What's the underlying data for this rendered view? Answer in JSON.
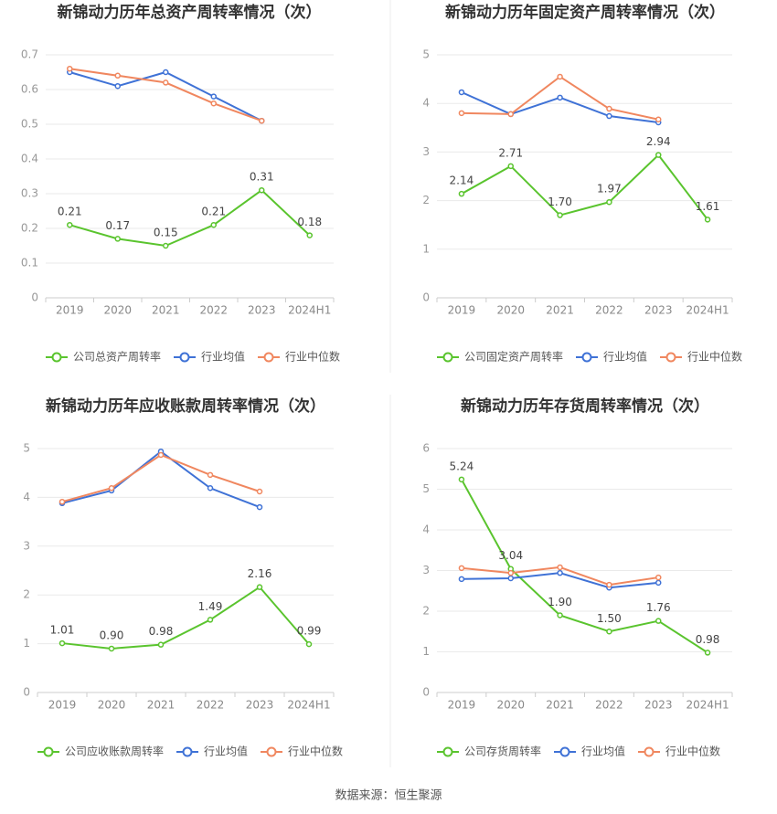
{
  "chart_data": [
    {
      "type": "line",
      "title": "新锦动力历年总资产周转率情况（次）",
      "categories": [
        "2019",
        "2020",
        "2021",
        "2022",
        "2023",
        "2024H1"
      ],
      "ylim": [
        0,
        0.7
      ],
      "yticks": [
        0,
        0.1,
        0.2,
        0.3,
        0.4,
        0.5,
        0.6,
        0.7
      ],
      "grid": true,
      "series": [
        {
          "name": "公司总资产周转率",
          "color": "#5ac42e",
          "data_labels": true,
          "values": [
            0.21,
            0.17,
            0.15,
            0.21,
            0.31,
            0.18
          ]
        },
        {
          "name": "行业均值",
          "color": "#3f72d6",
          "values": [
            0.65,
            0.61,
            0.65,
            0.58,
            0.51,
            null
          ]
        },
        {
          "name": "行业中位数",
          "color": "#f0875f",
          "values": [
            0.66,
            0.64,
            0.62,
            0.56,
            0.51,
            null
          ]
        }
      ]
    },
    {
      "type": "line",
      "title": "新锦动力历年固定资产周转率情况（次）",
      "categories": [
        "2019",
        "2020",
        "2021",
        "2022",
        "2023",
        "2024H1"
      ],
      "ylim": [
        0,
        5
      ],
      "yticks": [
        0,
        1,
        2,
        3,
        4,
        5
      ],
      "grid": true,
      "series": [
        {
          "name": "公司固定资产周转率",
          "color": "#5ac42e",
          "data_labels": true,
          "values": [
            2.14,
            2.71,
            1.7,
            1.97,
            2.94,
            1.61
          ],
          "value_labels": [
            "2.14",
            "2.71",
            "1.70",
            "1.97",
            "2.94",
            "1.61"
          ]
        },
        {
          "name": "行业均值",
          "color": "#3f72d6",
          "values": [
            4.23,
            3.78,
            4.12,
            3.74,
            3.61,
            null
          ]
        },
        {
          "name": "行业中位数",
          "color": "#f0875f",
          "values": [
            3.8,
            3.78,
            4.55,
            3.89,
            3.67,
            null
          ]
        }
      ]
    },
    {
      "type": "line",
      "title": "新锦动力历年应收账款周转率情况（次）",
      "categories": [
        "2019",
        "2020",
        "2021",
        "2022",
        "2023",
        "2024H1"
      ],
      "ylim": [
        0,
        5
      ],
      "yticks": [
        0,
        1,
        2,
        3,
        4,
        5
      ],
      "grid": true,
      "series": [
        {
          "name": "公司应收账款周转率",
          "color": "#5ac42e",
          "data_labels": true,
          "values": [
            1.01,
            0.9,
            0.98,
            1.49,
            2.16,
            0.99
          ],
          "value_labels": [
            "1.01",
            "0.90",
            "0.98",
            "1.49",
            "2.16",
            "0.99"
          ]
        },
        {
          "name": "行业均值",
          "color": "#3f72d6",
          "values": [
            3.88,
            4.14,
            4.94,
            4.19,
            3.8,
            null
          ]
        },
        {
          "name": "行业中位数",
          "color": "#f0875f",
          "values": [
            3.91,
            4.19,
            4.87,
            4.46,
            4.12,
            null
          ]
        }
      ]
    },
    {
      "type": "line",
      "title": "新锦动力历年存货周转率情况（次）",
      "categories": [
        "2019",
        "2020",
        "2021",
        "2022",
        "2023",
        "2024H1"
      ],
      "ylim": [
        0,
        6
      ],
      "yticks": [
        0,
        1,
        2,
        3,
        4,
        5,
        6
      ],
      "grid": true,
      "series": [
        {
          "name": "公司存货周转率",
          "color": "#5ac42e",
          "data_labels": true,
          "values": [
            5.24,
            3.04,
            1.9,
            1.5,
            1.76,
            0.98
          ],
          "value_labels": [
            "5.24",
            "3.04",
            "1.90",
            "1.50",
            "1.76",
            "0.98"
          ]
        },
        {
          "name": "行业均值",
          "color": "#3f72d6",
          "values": [
            2.79,
            2.81,
            2.94,
            2.58,
            2.7,
            null
          ]
        },
        {
          "name": "行业中位数",
          "color": "#f0875f",
          "values": [
            3.06,
            2.94,
            3.08,
            2.65,
            2.83,
            null
          ]
        }
      ]
    }
  ],
  "source": "数据来源：恒生聚源"
}
